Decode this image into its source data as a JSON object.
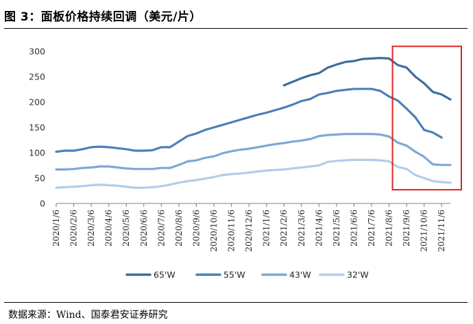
{
  "header": {
    "title": "图 3：面板价格持续回调（美元/片）"
  },
  "footer": {
    "source": "数据来源：Wind、国泰君安证券研究"
  },
  "colors": {
    "series": [
      "#3e6d98",
      "#4b7fb8",
      "#7ea7d6",
      "#b1cdea"
    ],
    "highlight_box": "#e02222",
    "axis": "#7f7f7f"
  },
  "chart_data": {
    "type": "line",
    "title": "",
    "xlabel": "",
    "ylabel": "",
    "ylim": [
      0,
      300
    ],
    "yticks": [
      0,
      50,
      100,
      150,
      200,
      250,
      300
    ],
    "grid": false,
    "legend_position": "bottom",
    "x_tick_labels": [
      "2020/1/6",
      "2020/2/6",
      "2020/3/6",
      "2020/4/6",
      "2020/5/6",
      "2020/6/6",
      "2020/7/6",
      "2020/8/6",
      "2020/9/6",
      "2020/10/6",
      "2020/11/6",
      "2020/12/6",
      "2021/1/6",
      "2021/2/6",
      "2021/3/6",
      "2021/4/6",
      "2021/5/6",
      "2021/6/6",
      "2021/7/6",
      "2021/8/6",
      "2021/9/6",
      "2021/10/6",
      "2021/11/6"
    ],
    "x": [
      "2020/1/6",
      "2020/1/21",
      "2020/2/6",
      "2020/2/21",
      "2020/3/6",
      "2020/3/21",
      "2020/4/6",
      "2020/4/21",
      "2020/5/6",
      "2020/5/21",
      "2020/6/6",
      "2020/6/21",
      "2020/7/6",
      "2020/7/21",
      "2020/8/6",
      "2020/8/21",
      "2020/9/6",
      "2020/9/21",
      "2020/10/6",
      "2020/10/21",
      "2020/11/6",
      "2020/11/21",
      "2020/12/6",
      "2020/12/21",
      "2021/1/6",
      "2021/1/21",
      "2021/2/6",
      "2021/2/21",
      "2021/3/6",
      "2021/3/21",
      "2021/4/6",
      "2021/4/21",
      "2021/5/6",
      "2021/5/21",
      "2021/6/6",
      "2021/6/21",
      "2021/7/6",
      "2021/7/21",
      "2021/8/6",
      "2021/8/21",
      "2021/9/6",
      "2021/9/21",
      "2021/10/6",
      "2021/10/21",
      "2021/11/6",
      "2021/11/21"
    ],
    "series": [
      {
        "name": "65'W",
        "values": [
          null,
          null,
          null,
          null,
          null,
          null,
          null,
          null,
          null,
          null,
          null,
          null,
          null,
          null,
          null,
          null,
          null,
          null,
          null,
          null,
          null,
          null,
          null,
          null,
          null,
          null,
          233,
          240,
          247,
          253,
          257,
          268,
          274,
          279,
          281,
          285,
          286,
          287,
          286,
          273,
          268,
          250,
          237,
          220,
          215,
          205
        ]
      },
      {
        "name": "55'W",
        "values": [
          102,
          104,
          104,
          107,
          111,
          112,
          111,
          109,
          107,
          104,
          104,
          105,
          111,
          111,
          122,
          133,
          138,
          145,
          150,
          155,
          160,
          165,
          170,
          175,
          179,
          184,
          189,
          195,
          202,
          206,
          215,
          218,
          222,
          224,
          226,
          226,
          226,
          222,
          211,
          203,
          187,
          170,
          145,
          140,
          130,
          null
        ]
      },
      {
        "name": "43'W",
        "values": [
          67,
          67,
          68,
          70,
          71,
          73,
          73,
          71,
          69,
          68,
          68,
          68,
          70,
          70,
          76,
          83,
          85,
          90,
          93,
          99,
          103,
          106,
          108,
          111,
          114,
          117,
          119,
          122,
          124,
          127,
          133,
          135,
          136,
          137,
          137,
          137,
          137,
          136,
          132,
          120,
          114,
          102,
          92,
          77,
          76,
          76
        ]
      },
      {
        "name": "32'W",
        "values": [
          31,
          32,
          33,
          34,
          36,
          37,
          36,
          35,
          33,
          31,
          31,
          32,
          34,
          37,
          41,
          44,
          46,
          49,
          52,
          56,
          58,
          59,
          61,
          63,
          65,
          66,
          67,
          69,
          71,
          73,
          75,
          82,
          84,
          85,
          86,
          86,
          86,
          85,
          83,
          72,
          68,
          56,
          50,
          44,
          42,
          41
        ]
      }
    ],
    "annotations": [
      {
        "type": "box",
        "x_range": [
          "2021/8/6",
          "2021/11/21"
        ],
        "y_range": [
          27,
          310
        ]
      }
    ]
  }
}
